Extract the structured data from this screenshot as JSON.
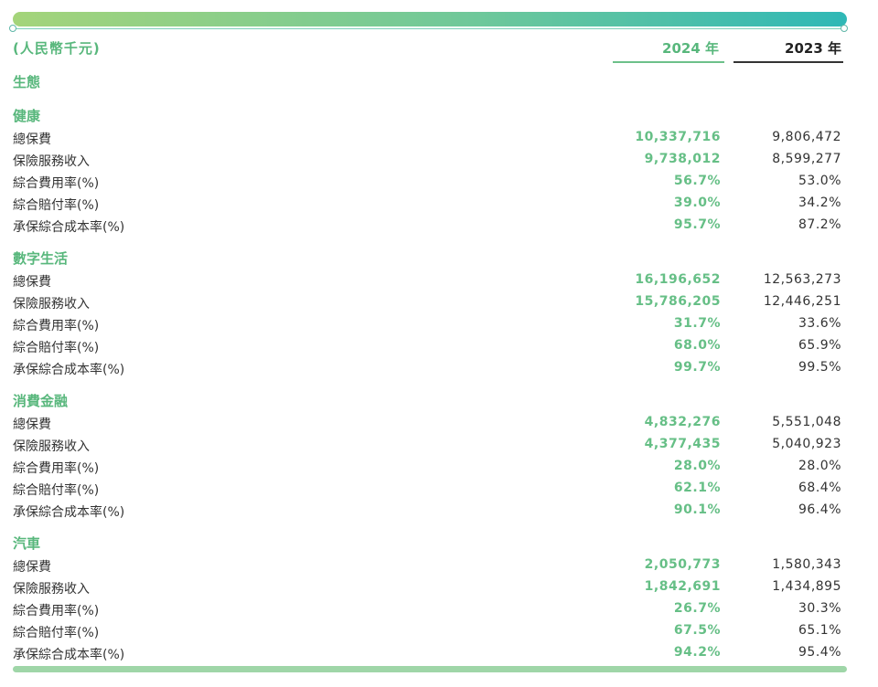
{
  "header": {
    "unit": "(人民幣千元)",
    "year_current": "2024 年",
    "year_previous": "2023 年"
  },
  "ecosystem_title": "生態",
  "sections": [
    {
      "title": "健康",
      "rows": [
        {
          "label": "總保費",
          "v2024": "10,337,716",
          "v2023": "9,806,472"
        },
        {
          "label": "保險服務收入",
          "v2024": "9,738,012",
          "v2023": "8,599,277"
        },
        {
          "label": "綜合費用率(%)",
          "v2024": "56.7%",
          "v2023": "53.0%"
        },
        {
          "label": "綜合賠付率(%)",
          "v2024": "39.0%",
          "v2023": "34.2%"
        },
        {
          "label": "承保綜合成本率(%)",
          "v2024": "95.7%",
          "v2023": "87.2%"
        }
      ]
    },
    {
      "title": "數字生活",
      "rows": [
        {
          "label": "總保費",
          "v2024": "16,196,652",
          "v2023": "12,563,273"
        },
        {
          "label": "保險服務收入",
          "v2024": "15,786,205",
          "v2023": "12,446,251"
        },
        {
          "label": "綜合費用率(%)",
          "v2024": "31.7%",
          "v2023": "33.6%"
        },
        {
          "label": "綜合賠付率(%)",
          "v2024": "68.0%",
          "v2023": "65.9%"
        },
        {
          "label": "承保綜合成本率(%)",
          "v2024": "99.7%",
          "v2023": "99.5%"
        }
      ]
    },
    {
      "title": "消費金融",
      "rows": [
        {
          "label": "總保費",
          "v2024": "4,832,276",
          "v2023": "5,551,048"
        },
        {
          "label": "保險服務收入",
          "v2024": "4,377,435",
          "v2023": "5,040,923"
        },
        {
          "label": "綜合費用率(%)",
          "v2024": "28.0%",
          "v2023": "28.0%"
        },
        {
          "label": "綜合賠付率(%)",
          "v2024": "62.1%",
          "v2023": "68.4%"
        },
        {
          "label": "承保綜合成本率(%)",
          "v2024": "90.1%",
          "v2023": "96.4%"
        }
      ]
    },
    {
      "title": "汽車",
      "rows": [
        {
          "label": "總保費",
          "v2024": "2,050,773",
          "v2023": "1,580,343"
        },
        {
          "label": "保險服務收入",
          "v2024": "1,842,691",
          "v2023": "1,434,895"
        },
        {
          "label": "綜合費用率(%)",
          "v2024": "26.7%",
          "v2023": "30.3%"
        },
        {
          "label": "綜合賠付率(%)",
          "v2024": "67.5%",
          "v2023": "65.1%"
        },
        {
          "label": "承保綜合成本率(%)",
          "v2024": "94.2%",
          "v2023": "95.4%"
        }
      ]
    }
  ]
}
